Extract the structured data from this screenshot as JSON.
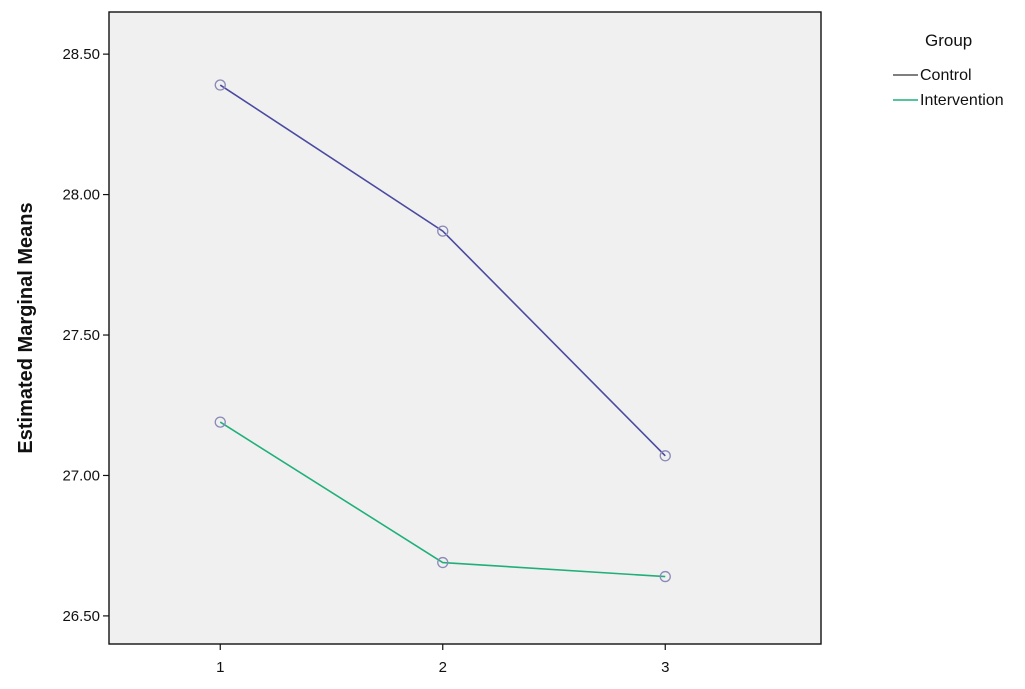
{
  "chart_data": {
    "type": "line",
    "title": "",
    "xlabel": "",
    "ylabel": "Estimated Marginal Means",
    "x": [
      "1",
      "2",
      "3"
    ],
    "xlim": [
      0.5,
      3.7
    ],
    "ylim": [
      26.4,
      28.65
    ],
    "yticks": [
      26.5,
      27.0,
      27.5,
      28.0,
      28.5
    ],
    "ytick_labels": [
      "26.50",
      "27.00",
      "27.50",
      "28.00",
      "28.50"
    ],
    "grid": false,
    "legend": {
      "title": "Group",
      "placement": "right"
    },
    "marker": "open-circle",
    "series": [
      {
        "name": "Control",
        "values": [
          28.39,
          27.87,
          27.07
        ],
        "color": "#4a4aa0",
        "legend_color": "#555555"
      },
      {
        "name": "Intervention",
        "values": [
          27.19,
          26.69,
          26.64
        ],
        "color": "#1fb07a",
        "legend_color": "#1fb07a"
      }
    ],
    "plot_background": "#f0f0f0"
  }
}
